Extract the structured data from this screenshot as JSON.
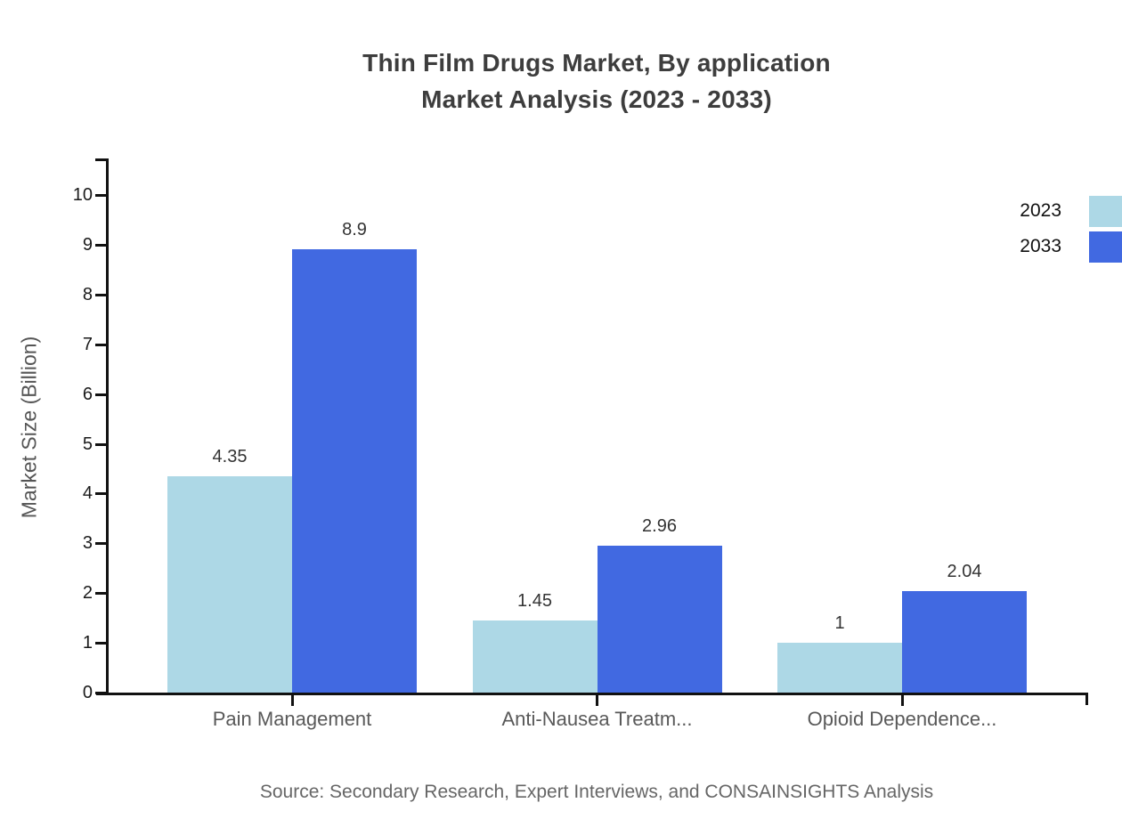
{
  "title": {
    "line1": "Thin Film Drugs Market, By application",
    "line2": "Market Analysis (2023 - 2033)"
  },
  "source_note": "Source: Secondary Research, Expert Interviews, and CONSAINSIGHTS Analysis",
  "chart_data": {
    "type": "bar",
    "title": "Thin Film Drugs Market, By application Market Analysis (2023 - 2033)",
    "categories": [
      "Pain Management",
      "Anti-Nausea Treatm...",
      "Opioid Dependence..."
    ],
    "series": [
      {
        "name": "2023",
        "color": "#ADD8E6",
        "values": [
          4.35,
          1.45,
          1
        ]
      },
      {
        "name": "2033",
        "color": "#4169E1",
        "values": [
          8.9,
          2.96,
          2.04
        ]
      }
    ],
    "data_labels": [
      [
        "4.35",
        "1.45",
        "1"
      ],
      [
        "8.9",
        "2.96",
        "2.04"
      ]
    ],
    "xlabel": "",
    "ylabel": "Market Size (Billion)",
    "ylim": [
      0,
      10
    ],
    "yticks": [
      0,
      1,
      2,
      3,
      4,
      5,
      6,
      7,
      8,
      9,
      10
    ],
    "grid": false,
    "legend_position": "top-right"
  },
  "colors": {
    "series_2023": "#ADD8E6",
    "series_2033": "#4169E1",
    "axis": "#111111",
    "title_text": "#3d3d3d",
    "category_text": "#595959",
    "muted_text": "#666666"
  }
}
